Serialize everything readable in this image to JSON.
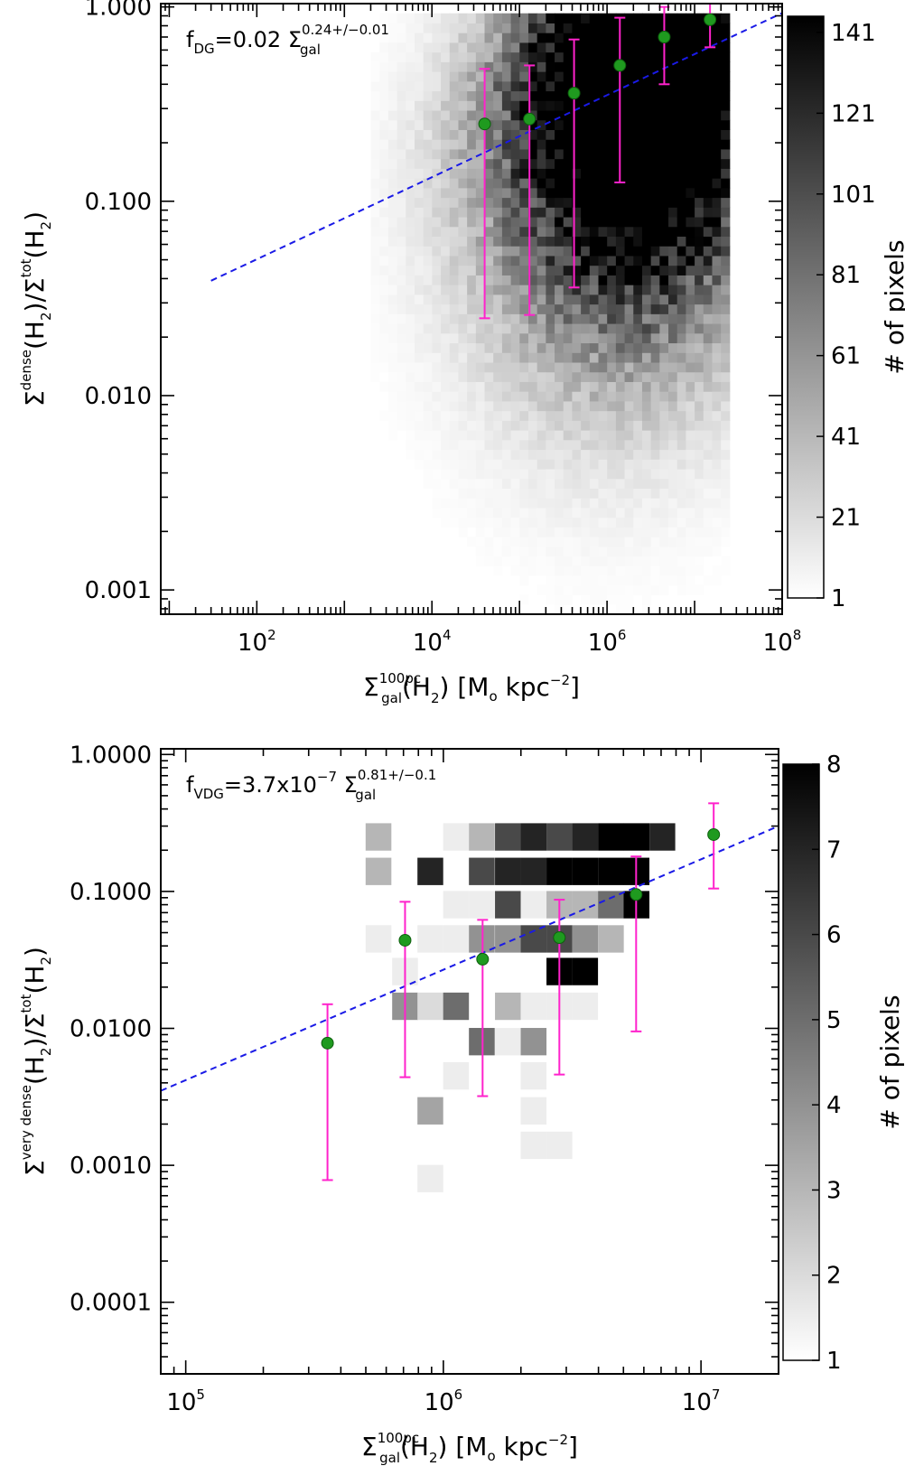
{
  "chart_data": [
    {
      "type": "heatmap",
      "xscale": "log",
      "yscale": "log",
      "xlim": [
        8,
        100000000
      ],
      "ylim": [
        0.00075,
        1.04
      ],
      "xticks": [
        {
          "value": 100,
          "base": "10",
          "exp": "2"
        },
        {
          "value": 10000,
          "base": "10",
          "exp": "4"
        },
        {
          "value": 1000000,
          "base": "10",
          "exp": "6"
        },
        {
          "value": 100000000,
          "base": "10",
          "exp": "8"
        }
      ],
      "yticks": [
        {
          "value": 0.001,
          "label": "0.001"
        },
        {
          "value": 0.01,
          "label": "0.010"
        },
        {
          "value": 0.1,
          "label": "0.100"
        },
        {
          "value": 1.0,
          "label": "1.000"
        }
      ],
      "xlabel": {
        "sigma": "Σ",
        "sup": "100pc",
        "sub": "gal",
        "rest": "(H",
        "rest_sub": "2",
        "rest2": ")  [M",
        "unit_sub": "o",
        "rest3": " kpc",
        "unit_sup": "−2",
        "rest4": "]"
      },
      "ylabel": {
        "sigma": "Σ",
        "sup": "dense",
        "rest": "(H",
        "rest_sub": "2",
        "rest2": ")/Σ",
        "sup2": "tot",
        "rest3": "(H",
        "rest_sub2": "2",
        "rest4": ")"
      },
      "annotation": {
        "f": "f",
        "f_sub": "DG",
        "eq": "=0.02  Σ",
        "sigma_sub": "gal",
        "sigma_sup": "0.24+/−0.01"
      },
      "colorbar": {
        "ticks": [
          "1",
          "21",
          "41",
          "61",
          "81",
          "101",
          "121",
          "141"
        ],
        "tick_values": [
          1,
          21,
          41,
          61,
          81,
          101,
          121,
          141
        ],
        "range": [
          1,
          145
        ],
        "label": "# of pixels"
      },
      "fit": {
        "x": [
          30,
          170000000
        ],
        "y": [
          0.039,
          1.04
        ]
      },
      "points": [
        {
          "x": 40000,
          "y": 0.25,
          "lo": 0.025,
          "hi": 0.48
        },
        {
          "x": 130000,
          "y": 0.265,
          "lo": 0.026,
          "hi": 0.5
        },
        {
          "x": 420000,
          "y": 0.36,
          "lo": 0.036,
          "hi": 0.68
        },
        {
          "x": 1400000,
          "y": 0.5,
          "lo": 0.125,
          "hi": 0.88
        },
        {
          "x": 4500000,
          "y": 0.7,
          "lo": 0.4,
          "hi": 1.0
        },
        {
          "x": 15000000,
          "y": 0.86,
          "lo": 0.62,
          "hi": 1.05
        }
      ],
      "density": {
        "core_x": [
          5000000,
          2500000,
          800000,
          250000,
          80000
        ],
        "core_y": [
          0.75,
          0.55,
          0.38,
          0.22,
          0.15
        ],
        "spread": [
          0.35,
          0.3,
          0.35,
          0.35,
          0.3
        ],
        "max": [
          145,
          100,
          60,
          25,
          10
        ]
      }
    },
    {
      "type": "heatmap",
      "xscale": "log",
      "yscale": "log",
      "xlim": [
        80000,
        20000000
      ],
      "ylim": [
        3e-05,
        1.1
      ],
      "xticks": [
        {
          "value": 100000,
          "base": "10",
          "exp": "5"
        },
        {
          "value": 1000000,
          "base": "10",
          "exp": "6"
        },
        {
          "value": 10000000,
          "base": "10",
          "exp": "7"
        }
      ],
      "yticks": [
        {
          "value": 0.0001,
          "label": "0.0001"
        },
        {
          "value": 0.001,
          "label": "0.0010"
        },
        {
          "value": 0.01,
          "label": "0.0100"
        },
        {
          "value": 0.1,
          "label": "0.1000"
        },
        {
          "value": 1.0,
          "label": "1.0000"
        }
      ],
      "xlabel": {
        "sigma": "Σ",
        "sup": "100pc",
        "sub": "gal",
        "rest": "(H",
        "rest_sub": "2",
        "rest2": ")  [M",
        "unit_sub": "o",
        "rest3": " kpc",
        "unit_sup": "−2",
        "rest4": "]"
      },
      "ylabel": {
        "sigma": "Σ",
        "sup": "very dense",
        "rest": "(H",
        "rest_sub": "2",
        "rest2": ")/Σ",
        "sup2": "tot",
        "rest3": "(H",
        "rest_sub2": "2",
        "rest4": ")"
      },
      "annotation": {
        "f": "f",
        "f_sub": "VDG",
        "eq": "=3.7x10",
        "eq_sup": "−7",
        "eq2": "  Σ",
        "sigma_sub": "gal",
        "sigma_sup": "0.81+/−0.1"
      },
      "colorbar": {
        "ticks": [
          "1",
          "2",
          "3",
          "4",
          "5",
          "6",
          "7",
          "8"
        ],
        "tick_values": [
          1,
          2,
          3,
          4,
          5,
          6,
          7,
          8
        ],
        "range": [
          1,
          8
        ],
        "label": "# of pixels"
      },
      "fit": {
        "x": [
          80000,
          20000000
        ],
        "y": [
          0.0035,
          0.3
        ]
      },
      "points": [
        {
          "x": 355000,
          "y": 0.0078,
          "lo": 0.00078,
          "hi": 0.015
        },
        {
          "x": 710000,
          "y": 0.044,
          "lo": 0.0044,
          "hi": 0.084
        },
        {
          "x": 1420000,
          "y": 0.032,
          "lo": 0.0032,
          "hi": 0.062
        },
        {
          "x": 2820000,
          "y": 0.046,
          "lo": 0.0046,
          "hi": 0.087
        },
        {
          "x": 5600000,
          "y": 0.095,
          "lo": 0.0095,
          "hi": 0.18
        },
        {
          "x": 11200000,
          "y": 0.26,
          "lo": 0.105,
          "hi": 0.44
        }
      ],
      "cells": [
        {
          "x": 560000,
          "y": 0.25,
          "v": 3
        },
        {
          "x": 560000,
          "y": 0.14,
          "v": 3
        },
        {
          "x": 1120000,
          "y": 0.25,
          "v": 1.5
        },
        {
          "x": 1410000,
          "y": 0.25,
          "v": 3
        },
        {
          "x": 1780000,
          "y": 0.25,
          "v": 6
        },
        {
          "x": 2240000,
          "y": 0.25,
          "v": 7
        },
        {
          "x": 2820000,
          "y": 0.25,
          "v": 6
        },
        {
          "x": 3550000,
          "y": 0.25,
          "v": 7
        },
        {
          "x": 4470000,
          "y": 0.25,
          "v": 8
        },
        {
          "x": 5620000,
          "y": 0.25,
          "v": 8
        },
        {
          "x": 7080000,
          "y": 0.25,
          "v": 7
        },
        {
          "x": 890000,
          "y": 0.14,
          "v": 7
        },
        {
          "x": 1410000,
          "y": 0.14,
          "v": 6
        },
        {
          "x": 1780000,
          "y": 0.14,
          "v": 7
        },
        {
          "x": 2240000,
          "y": 0.14,
          "v": 7
        },
        {
          "x": 2820000,
          "y": 0.14,
          "v": 8
        },
        {
          "x": 3550000,
          "y": 0.14,
          "v": 8
        },
        {
          "x": 4470000,
          "y": 0.14,
          "v": 8
        },
        {
          "x": 5620000,
          "y": 0.14,
          "v": 8
        },
        {
          "x": 1120000,
          "y": 0.08,
          "v": 1.5
        },
        {
          "x": 1410000,
          "y": 0.08,
          "v": 1.5
        },
        {
          "x": 1780000,
          "y": 0.08,
          "v": 6
        },
        {
          "x": 2240000,
          "y": 0.08,
          "v": 1.5
        },
        {
          "x": 2820000,
          "y": 0.08,
          "v": 3
        },
        {
          "x": 3550000,
          "y": 0.08,
          "v": 3
        },
        {
          "x": 4470000,
          "y": 0.08,
          "v": 5
        },
        {
          "x": 5620000,
          "y": 0.08,
          "v": 8
        },
        {
          "x": 560000,
          "y": 0.045,
          "v": 1.5
        },
        {
          "x": 890000,
          "y": 0.045,
          "v": 1.5
        },
        {
          "x": 1120000,
          "y": 0.045,
          "v": 1.5
        },
        {
          "x": 1410000,
          "y": 0.045,
          "v": 4
        },
        {
          "x": 1780000,
          "y": 0.045,
          "v": 4
        },
        {
          "x": 2240000,
          "y": 0.045,
          "v": 6
        },
        {
          "x": 2820000,
          "y": 0.045,
          "v": 6
        },
        {
          "x": 3550000,
          "y": 0.045,
          "v": 4
        },
        {
          "x": 4470000,
          "y": 0.045,
          "v": 3
        },
        {
          "x": 710000,
          "y": 0.026,
          "v": 1.5
        },
        {
          "x": 2820000,
          "y": 0.026,
          "v": 8
        },
        {
          "x": 3550000,
          "y": 0.026,
          "v": 8
        },
        {
          "x": 710000,
          "y": 0.0145,
          "v": 4
        },
        {
          "x": 890000,
          "y": 0.0145,
          "v": 2
        },
        {
          "x": 1120000,
          "y": 0.0145,
          "v": 5
        },
        {
          "x": 1780000,
          "y": 0.0145,
          "v": 3
        },
        {
          "x": 2240000,
          "y": 0.0145,
          "v": 1.5
        },
        {
          "x": 2820000,
          "y": 0.0145,
          "v": 1.5
        },
        {
          "x": 3550000,
          "y": 0.0145,
          "v": 1.5
        },
        {
          "x": 1410000,
          "y": 0.008,
          "v": 5
        },
        {
          "x": 1780000,
          "y": 0.008,
          "v": 1.5
        },
        {
          "x": 2240000,
          "y": 0.008,
          "v": 4
        },
        {
          "x": 1120000,
          "y": 0.0045,
          "v": 1.5
        },
        {
          "x": 2240000,
          "y": 0.0045,
          "v": 1.5
        },
        {
          "x": 890000,
          "y": 0.0025,
          "v": 3.5
        },
        {
          "x": 2240000,
          "y": 0.0025,
          "v": 1.5
        },
        {
          "x": 2240000,
          "y": 0.0014,
          "v": 1.5
        },
        {
          "x": 2820000,
          "y": 0.0014,
          "v": 1.5
        },
        {
          "x": 890000,
          "y": 0.0008,
          "v": 1.5
        }
      ]
    }
  ],
  "colors": {
    "fit_line": "#1a1ae6",
    "error_bar": "#ff22cc",
    "point_fill": "#1f9a1f",
    "point_edge": "#0e5e0e",
    "axis": "#000000"
  }
}
